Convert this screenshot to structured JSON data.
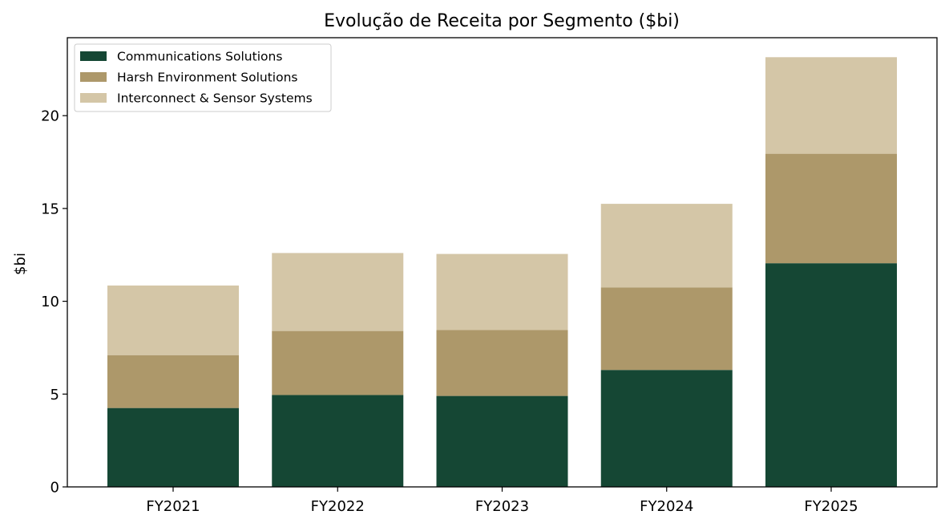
{
  "chart_data": {
    "type": "bar",
    "stacked": true,
    "title": "Evolução de Receita por Segmento ($bi)",
    "xlabel": "",
    "ylabel": "$bi",
    "categories": [
      "FY2021",
      "FY2022",
      "FY2023",
      "FY2024",
      "FY2025"
    ],
    "ylim": [
      0,
      24.2
    ],
    "yticks": [
      0,
      5,
      10,
      15,
      20
    ],
    "grid": false,
    "legend_position": "top-left",
    "series": [
      {
        "name": "Communications Solutions",
        "color": "#154734",
        "values": [
          4.25,
          4.95,
          4.9,
          6.3,
          12.05
        ]
      },
      {
        "name": "Harsh Environment Solutions",
        "color": "#ad986a",
        "values": [
          2.85,
          3.45,
          3.55,
          4.45,
          5.9
        ]
      },
      {
        "name": "Interconnect & Sensor Systems",
        "color": "#d4c6a7",
        "values": [
          3.75,
          4.2,
          4.1,
          4.5,
          5.2
        ]
      }
    ]
  }
}
